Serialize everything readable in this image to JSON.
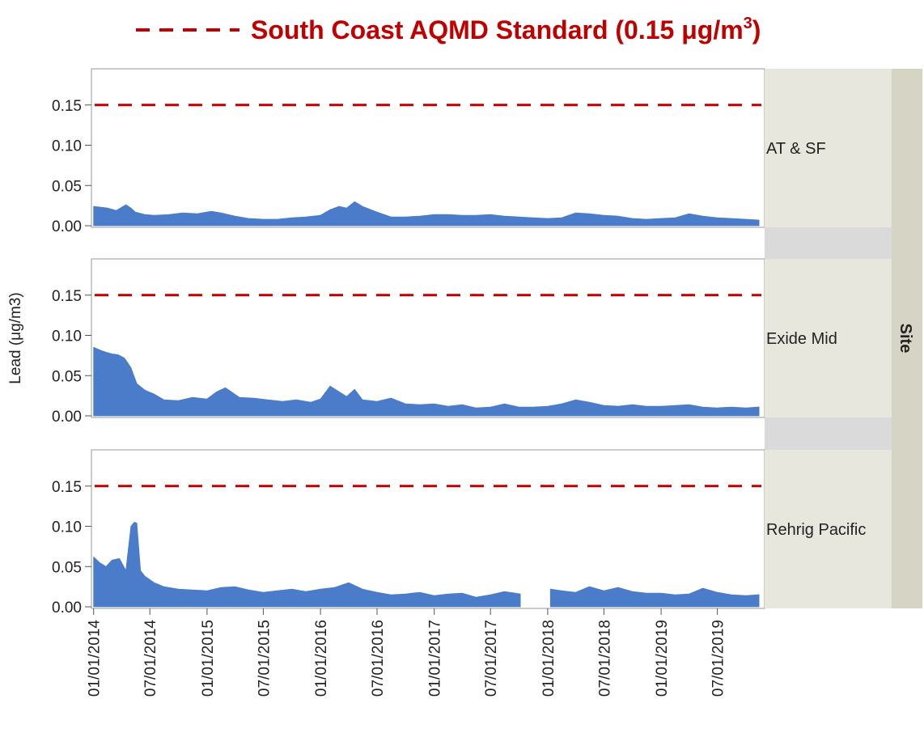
{
  "legend": {
    "label_main": "South Coast AQMD Standard (0.15 μg/m",
    "label_sup": "3",
    "label_end": ")",
    "line_color": "#c00000"
  },
  "chart_data": {
    "type": "area",
    "ylabel": "Lead (μg/m3)",
    "group_title": "Site",
    "ylim": [
      0,
      0.195
    ],
    "y_ticks": [
      "0.00",
      "0.05",
      "0.10",
      "0.15"
    ],
    "y_tick_values": [
      0,
      0.05,
      0.1,
      0.15
    ],
    "x_ticks": [
      "01/01/2014",
      "07/01/2014",
      "01/01/2015",
      "07/01/2015",
      "01/01/2016",
      "07/01/2016",
      "01/01/2017",
      "07/01/2017",
      "01/01/2018",
      "07/01/2018",
      "01/01/2019",
      "07/01/2019"
    ],
    "x_tick_dates": [
      "2014-01-01",
      "2014-07-01",
      "2015-01-01",
      "2015-07-01",
      "2016-01-01",
      "2016-07-01",
      "2017-01-01",
      "2017-07-01",
      "2018-01-01",
      "2018-07-01",
      "2019-01-01",
      "2019-07-01"
    ],
    "xlim": [
      "2013-12-25",
      "2019-11-30"
    ],
    "reference_line": {
      "value": 0.15,
      "style": "dashed",
      "color": "#c00000"
    },
    "series_color": "#4a7cc9",
    "series": [
      {
        "name": "AT & SF",
        "x": [
          "2014-01-01",
          "2014-02-15",
          "2014-03-15",
          "2014-04-15",
          "2014-05-01",
          "2014-05-15",
          "2014-06-15",
          "2014-07-15",
          "2014-09-01",
          "2014-10-15",
          "2014-12-01",
          "2015-01-15",
          "2015-02-15",
          "2015-04-01",
          "2015-05-15",
          "2015-07-01",
          "2015-08-15",
          "2015-10-01",
          "2015-11-15",
          "2016-01-01",
          "2016-02-01",
          "2016-03-01",
          "2016-03-25",
          "2016-04-20",
          "2016-05-15",
          "2016-07-01",
          "2016-08-15",
          "2016-10-01",
          "2016-11-15",
          "2017-01-01",
          "2017-02-15",
          "2017-04-01",
          "2017-05-15",
          "2017-07-01",
          "2017-08-15",
          "2017-10-01",
          "2017-11-15",
          "2018-01-01",
          "2018-02-15",
          "2018-04-01",
          "2018-05-15",
          "2018-07-01",
          "2018-08-15",
          "2018-10-01",
          "2018-11-15",
          "2019-01-01",
          "2019-02-15",
          "2019-04-01",
          "2019-05-15",
          "2019-07-01",
          "2019-08-15",
          "2019-10-01",
          "2019-11-12"
        ],
        "values": [
          0.024,
          0.022,
          0.019,
          0.026,
          0.022,
          0.017,
          0.014,
          0.013,
          0.014,
          0.016,
          0.015,
          0.018,
          0.016,
          0.012,
          0.009,
          0.008,
          0.008,
          0.01,
          0.011,
          0.013,
          0.02,
          0.024,
          0.022,
          0.03,
          0.024,
          0.017,
          0.011,
          0.011,
          0.012,
          0.014,
          0.014,
          0.013,
          0.013,
          0.014,
          0.012,
          0.011,
          0.01,
          0.009,
          0.01,
          0.016,
          0.015,
          0.013,
          0.012,
          0.009,
          0.008,
          0.009,
          0.01,
          0.015,
          0.012,
          0.01,
          0.009,
          0.008,
          0.007
        ]
      },
      {
        "name": "Exide Mid",
        "x": [
          "2014-01-01",
          "2014-01-20",
          "2014-02-10",
          "2014-03-01",
          "2014-03-20",
          "2014-04-10",
          "2014-05-01",
          "2014-05-20",
          "2014-06-15",
          "2014-07-15",
          "2014-08-15",
          "2014-10-01",
          "2014-11-15",
          "2015-01-01",
          "2015-02-01",
          "2015-03-01",
          "2015-04-15",
          "2015-06-01",
          "2015-07-15",
          "2015-09-01",
          "2015-10-15",
          "2015-12-01",
          "2016-01-01",
          "2016-02-01",
          "2016-03-01",
          "2016-03-25",
          "2016-04-20",
          "2016-05-15",
          "2016-07-01",
          "2016-08-15",
          "2016-10-01",
          "2016-11-15",
          "2017-01-01",
          "2017-02-15",
          "2017-04-01",
          "2017-05-15",
          "2017-07-01",
          "2017-08-15",
          "2017-10-01",
          "2017-11-15",
          "2018-01-01",
          "2018-02-15",
          "2018-04-01",
          "2018-05-15",
          "2018-07-01",
          "2018-08-15",
          "2018-10-01",
          "2018-11-15",
          "2019-01-01",
          "2019-02-15",
          "2019-04-01",
          "2019-05-15",
          "2019-07-01",
          "2019-08-15",
          "2019-10-01",
          "2019-11-12"
        ],
        "values": [
          0.085,
          0.082,
          0.079,
          0.077,
          0.076,
          0.072,
          0.06,
          0.04,
          0.032,
          0.027,
          0.02,
          0.019,
          0.023,
          0.021,
          0.03,
          0.035,
          0.023,
          0.022,
          0.02,
          0.018,
          0.02,
          0.017,
          0.021,
          0.037,
          0.03,
          0.024,
          0.033,
          0.02,
          0.018,
          0.022,
          0.015,
          0.014,
          0.015,
          0.012,
          0.014,
          0.01,
          0.011,
          0.015,
          0.011,
          0.011,
          0.012,
          0.015,
          0.02,
          0.017,
          0.013,
          0.012,
          0.014,
          0.012,
          0.012,
          0.013,
          0.014,
          0.011,
          0.01,
          0.011,
          0.01,
          0.011
        ]
      },
      {
        "name": "Rehrig Pacific",
        "x": [
          "2014-01-01",
          "2014-01-20",
          "2014-02-10",
          "2014-03-01",
          "2014-03-25",
          "2014-04-15",
          "2014-05-01",
          "2014-05-12",
          "2014-05-20",
          "2014-06-01",
          "2014-06-15",
          "2014-07-15",
          "2014-08-15",
          "2014-10-01",
          "2014-11-15",
          "2015-01-01",
          "2015-02-15",
          "2015-04-01",
          "2015-05-15",
          "2015-07-01",
          "2015-08-15",
          "2015-10-01",
          "2015-11-15",
          "2016-01-01",
          "2016-02-15",
          "2016-04-01",
          "2016-05-15",
          "2016-07-01",
          "2016-08-15",
          "2016-10-01",
          "2016-11-15",
          "2017-01-01",
          "2017-02-15",
          "2017-04-01",
          "2017-05-15",
          "2017-07-01",
          "2017-08-15",
          "2017-10-05",
          null,
          "2018-01-10",
          "2018-02-15",
          "2018-04-01",
          "2018-05-15",
          "2018-07-01",
          "2018-08-15",
          "2018-10-01",
          "2018-11-15",
          "2019-01-01",
          "2019-02-15",
          "2019-04-01",
          "2019-05-15",
          "2019-07-01",
          "2019-08-15",
          "2019-10-01",
          "2019-11-12"
        ],
        "values": [
          0.062,
          0.055,
          0.05,
          0.058,
          0.06,
          0.045,
          0.1,
          0.105,
          0.104,
          0.045,
          0.038,
          0.03,
          0.025,
          0.022,
          0.021,
          0.02,
          0.024,
          0.025,
          0.021,
          0.018,
          0.02,
          0.022,
          0.019,
          0.022,
          0.024,
          0.03,
          0.022,
          0.018,
          0.015,
          0.016,
          0.018,
          0.014,
          0.016,
          0.017,
          0.012,
          0.015,
          0.019,
          0.016,
          null,
          0.022,
          0.02,
          0.018,
          0.025,
          0.02,
          0.024,
          0.019,
          0.017,
          0.017,
          0.015,
          0.016,
          0.023,
          0.018,
          0.015,
          0.014,
          0.015
        ]
      }
    ]
  }
}
